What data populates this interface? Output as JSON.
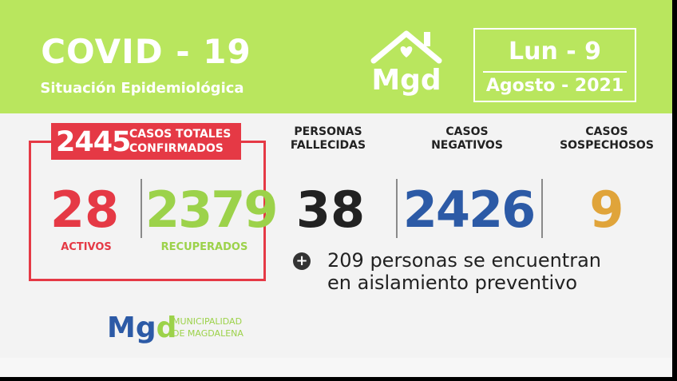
{
  "header": {
    "title": "COVID - 19",
    "subtitle": "Situación Epidemiológica",
    "logo_text": "Mgd",
    "date_day": "Lun - 9",
    "date_month": "Agosto - 2021"
  },
  "confirmados": {
    "total": "2445",
    "label_line1": "CASOS TOTALES",
    "label_line2": "CONFIRMADOS",
    "activos_value": "28",
    "activos_label": "ACTIVOS",
    "recuperados_value": "2379",
    "recuperados_label": "RECUPERADOS"
  },
  "stats": {
    "fallecidas_label1": "PERSONAS",
    "fallecidas_label2": "FALLECIDAS",
    "fallecidas_value": "38",
    "negativos_label1": "CASOS",
    "negativos_label2": "NEGATIVOS",
    "negativos_value": "2426",
    "sospechosos_label1": "CASOS",
    "sospechosos_label2": "SOSPECHOSOS",
    "sospechosos_value": "9"
  },
  "aislamiento": {
    "icon": "plus-circle-icon",
    "line1": "209 personas se encuentran",
    "line2": "en aislamiento preventivo"
  },
  "footer": {
    "logo_m": "M",
    "logo_g": "g",
    "logo_d": "d",
    "muni_line1": "MUNICIPALIDAD",
    "muni_line2": "DE MAGDALENA"
  },
  "colors": {
    "header_green": "#b9e65e",
    "red": "#e53945",
    "green": "#9cd24a",
    "blue": "#2c5aa6",
    "orange": "#e0a43a",
    "dark": "#222222"
  }
}
